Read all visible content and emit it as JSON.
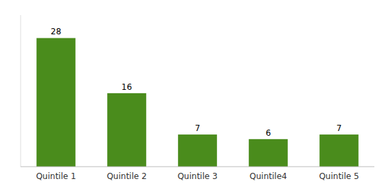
{
  "chart_data": {
    "type": "bar",
    "categories": [
      "Quintile 1",
      "Quintile 2",
      "Quintile 3",
      "Quintile4",
      "Quintile 5"
    ],
    "values": [
      28,
      16,
      7,
      6,
      7
    ],
    "color": "#4a8c1c",
    "ylim": [
      0,
      33
    ],
    "data_labels": true,
    "tick_labels": "x",
    "grid": false
  }
}
